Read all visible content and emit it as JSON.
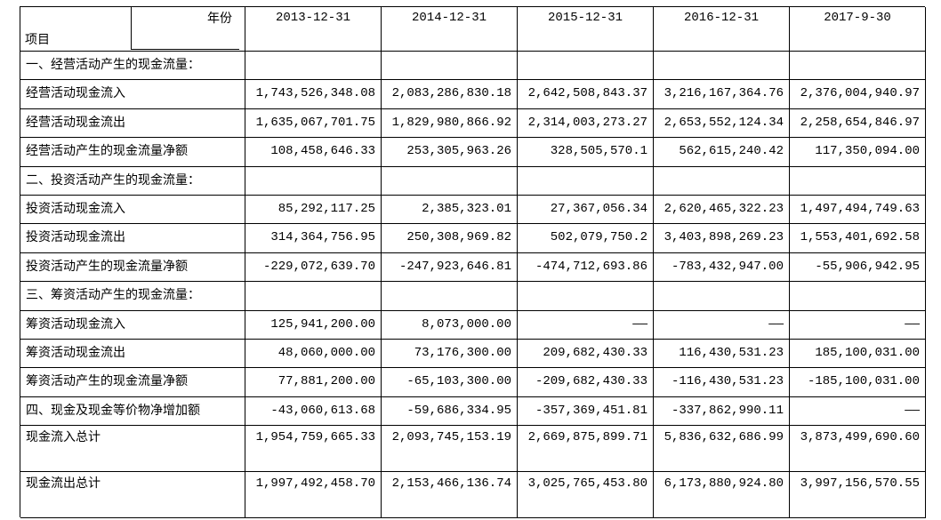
{
  "header": {
    "corner_top": "年份",
    "corner_bottom": "项目",
    "columns": [
      "2013-12-31",
      "2014-12-31",
      "2015-12-31",
      "2016-12-31",
      "2017-9-30"
    ]
  },
  "rows": [
    {
      "label": "一、经营活动产生的现金流量："
    },
    {
      "label": "经营活动现金流入",
      "values": [
        "1,743,526,348.08",
        "2,083,286,830.18",
        "2,642,508,843.37",
        "3,216,167,364.76",
        "2,376,004,940.97"
      ]
    },
    {
      "label": "经营活动现金流出",
      "values": [
        "1,635,067,701.75",
        "1,829,980,866.92",
        "2,314,003,273.27",
        "2,653,552,124.34",
        "2,258,654,846.97"
      ]
    },
    {
      "label": "经营活动产生的现金流量净额",
      "values": [
        "108,458,646.33",
        "253,305,963.26",
        "328,505,570.1",
        "562,615,240.42",
        "117,350,094.00"
      ]
    },
    {
      "label": "二、投资活动产生的现金流量："
    },
    {
      "label": "投资活动现金流入",
      "values": [
        "85,292,117.25",
        "2,385,323.01",
        "27,367,056.34",
        "2,620,465,322.23",
        "1,497,494,749.63"
      ]
    },
    {
      "label": "投资活动现金流出",
      "values": [
        "314,364,756.95",
        "250,308,969.82",
        "502,079,750.2",
        "3,403,898,269.23",
        "1,553,401,692.58"
      ]
    },
    {
      "label": "投资活动产生的现金流量净额",
      "values": [
        "-229,072,639.70",
        "-247,923,646.81",
        "-474,712,693.86",
        "-783,432,947.00",
        "-55,906,942.95"
      ]
    },
    {
      "label": "三、筹资活动产生的现金流量："
    },
    {
      "label": "筹资活动现金流入",
      "values": [
        "125,941,200.00",
        "8,073,000.00",
        "——",
        "——",
        "——"
      ]
    },
    {
      "label": "筹资活动现金流出",
      "values": [
        "48,060,000.00",
        "73,176,300.00",
        "209,682,430.33",
        "116,430,531.23",
        "185,100,031.00"
      ]
    },
    {
      "label": "筹资活动产生的现金流量净额",
      "values": [
        "77,881,200.00",
        "-65,103,300.00",
        "-209,682,430.33",
        "-116,430,531.23",
        "-185,100,031.00"
      ]
    },
    {
      "label": "四、现金及现金等价物净增加额",
      "values": [
        "-43,060,613.68",
        "-59,686,334.95",
        "-357,369,451.81",
        "-337,862,990.11",
        "——"
      ]
    },
    {
      "label": "现金流入总计",
      "values": [
        "1,954,759,665.33",
        "2,093,745,153.19",
        "2,669,875,899.71",
        "5,836,632,686.99",
        "3,873,499,690.60"
      ]
    },
    {
      "label": "现金流出总计",
      "values": [
        "1,997,492,458.70",
        "2,153,466,136.74",
        "3,025,765,453.80",
        "6,173,880,924.80",
        "3,997,156,570.55"
      ]
    }
  ]
}
